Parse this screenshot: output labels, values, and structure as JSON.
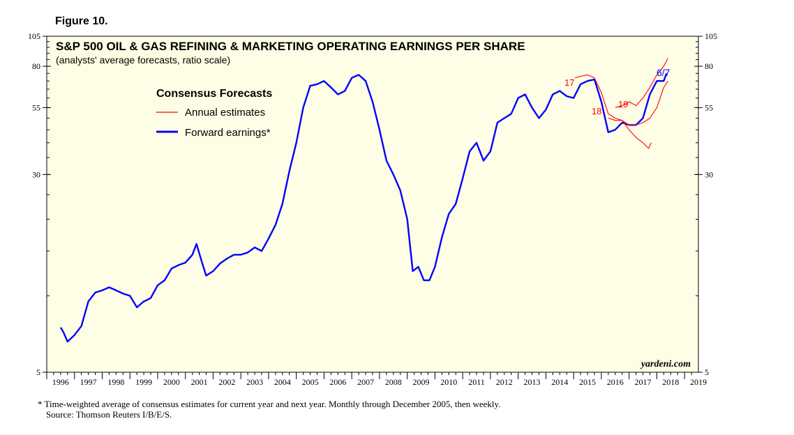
{
  "figure_label": "Figure 10.",
  "footnote": {
    "line1": "*   Time-weighted average of consensus estimates for current year and next year. Monthly through December 2005, then weekly.",
    "line2": "Source: Thomson Reuters I/B/E/S."
  },
  "colors": {
    "background": "#FEFEE6",
    "forward": "#0000FF",
    "annual": "#FF0000",
    "axis": "#000000"
  },
  "chart_data": {
    "type": "line",
    "scale": "log",
    "title": "S&P 500 OIL & GAS REFINING & MARKETING OPERATING EARNINGS PER SHARE",
    "subtitle": "(analysts' average forecasts, ratio scale)",
    "legend": {
      "title": "Consensus Forecasts",
      "position": "top-left",
      "entries": [
        "Annual estimates",
        "Forward earnings*"
      ]
    },
    "watermark": "yardeni.com",
    "end_label": "6/7",
    "xlim": [
      1996,
      2019.5
    ],
    "ylim": [
      5,
      105
    ],
    "x_tick_labels": [
      "1996",
      "1997",
      "1998",
      "1999",
      "2000",
      "2001",
      "2002",
      "2003",
      "2004",
      "2005",
      "2006",
      "2007",
      "2008",
      "2009",
      "2010",
      "2011",
      "2012",
      "2013",
      "2014",
      "2015",
      "2016",
      "2017",
      "2018",
      "2019"
    ],
    "y_tick_labels_left": [
      "105",
      "80",
      "55",
      "30",
      "5"
    ],
    "y_tick_labels_right": [
      "105",
      "80",
      "55",
      "30",
      "5"
    ],
    "y_tick_values": [
      105,
      80,
      55,
      30,
      5
    ],
    "series": [
      {
        "name": "Forward earnings*",
        "x": [
          1996.5,
          1996.6,
          1996.75,
          1997.0,
          1997.25,
          1997.5,
          1997.75,
          1998.0,
          1998.25,
          1998.5,
          1998.75,
          1999.0,
          1999.25,
          1999.5,
          1999.6,
          1999.75,
          2000.0,
          2000.25,
          2000.5,
          2000.75,
          2001.0,
          2001.25,
          2001.4,
          2001.6,
          2001.75,
          2002.0,
          2002.25,
          2002.5,
          2002.75,
          2003.0,
          2003.25,
          2003.5,
          2003.75,
          2004.0,
          2004.25,
          2004.5,
          2004.75,
          2005.0,
          2005.25,
          2005.5,
          2005.75,
          2006.0,
          2006.25,
          2006.5,
          2006.75,
          2007.0,
          2007.25,
          2007.5,
          2007.75,
          2008.0,
          2008.25,
          2008.5,
          2008.75,
          2009.0,
          2009.2,
          2009.4,
          2009.6,
          2009.8,
          2010.0,
          2010.25,
          2010.5,
          2010.75,
          2011.0,
          2011.25,
          2011.5,
          2011.75,
          2012.0,
          2012.25,
          2012.5,
          2012.75,
          2013.0,
          2013.25,
          2013.5,
          2013.75,
          2014.0,
          2014.25,
          2014.5,
          2014.75,
          2015.0,
          2015.25,
          2015.5,
          2015.75,
          2016.0,
          2016.25,
          2016.5,
          2016.75,
          2017.0,
          2017.25,
          2017.5,
          2017.75,
          2018.0,
          2018.25,
          2018.35
        ],
        "values": [
          7.5,
          7.2,
          6.6,
          7.0,
          7.6,
          9.5,
          10.3,
          10.5,
          10.8,
          10.5,
          10.2,
          10.0,
          9.0,
          9.5,
          9.6,
          9.8,
          11.0,
          11.5,
          12.8,
          13.2,
          13.5,
          14.5,
          16.0,
          13.5,
          12.0,
          12.5,
          13.4,
          14.0,
          14.5,
          14.5,
          14.8,
          15.5,
          15.0,
          16.8,
          19.0,
          23.0,
          31.0,
          40.0,
          55.0,
          67.0,
          68.0,
          70.0,
          66.0,
          62.0,
          64.0,
          72.0,
          74.0,
          70.0,
          58.0,
          45.0,
          34.0,
          30.0,
          26.0,
          20.0,
          12.5,
          13.0,
          11.5,
          11.5,
          13.0,
          17.0,
          21.0,
          23.0,
          29.0,
          37.0,
          40.0,
          34.0,
          37.0,
          48.0,
          50.0,
          52.0,
          60.0,
          62.0,
          55.0,
          50.0,
          54.0,
          62.0,
          64.0,
          61.0,
          60.0,
          68.0,
          70.0,
          71.0,
          58.0,
          44.0,
          45.0,
          48.0,
          47.0,
          47.0,
          50.0,
          62.0,
          70.0,
          70.0,
          75.0
        ]
      },
      {
        "name": "17",
        "x": [
          2015.05,
          2015.25,
          2015.5,
          2015.75,
          2016.0,
          2016.25,
          2016.5,
          2016.75,
          2017.0,
          2017.25,
          2017.5,
          2017.7,
          2017.8
        ],
        "values": [
          72.0,
          73.0,
          74.0,
          72.0,
          63.0,
          52.0,
          50.0,
          49.0,
          45.0,
          42.0,
          40.0,
          38.0,
          40.0
        ]
      },
      {
        "name": "18",
        "x": [
          2016.25,
          2016.5,
          2016.75,
          2017.0,
          2017.25,
          2017.5,
          2017.75,
          2018.0,
          2018.25,
          2018.4
        ],
        "values": [
          50.0,
          49.0,
          49.0,
          47.0,
          47.0,
          48.0,
          50.0,
          55.0,
          66.0,
          70.0
        ]
      },
      {
        "name": "19",
        "x": [
          2016.5,
          2016.75,
          2017.0,
          2017.25,
          2017.5,
          2017.75,
          2018.0,
          2018.25,
          2018.4
        ],
        "values": [
          55.0,
          56.0,
          58.0,
          56.0,
          60.0,
          66.0,
          74.0,
          80.0,
          86.0
        ]
      }
    ],
    "series_labels": [
      "17",
      "18",
      "19"
    ]
  }
}
